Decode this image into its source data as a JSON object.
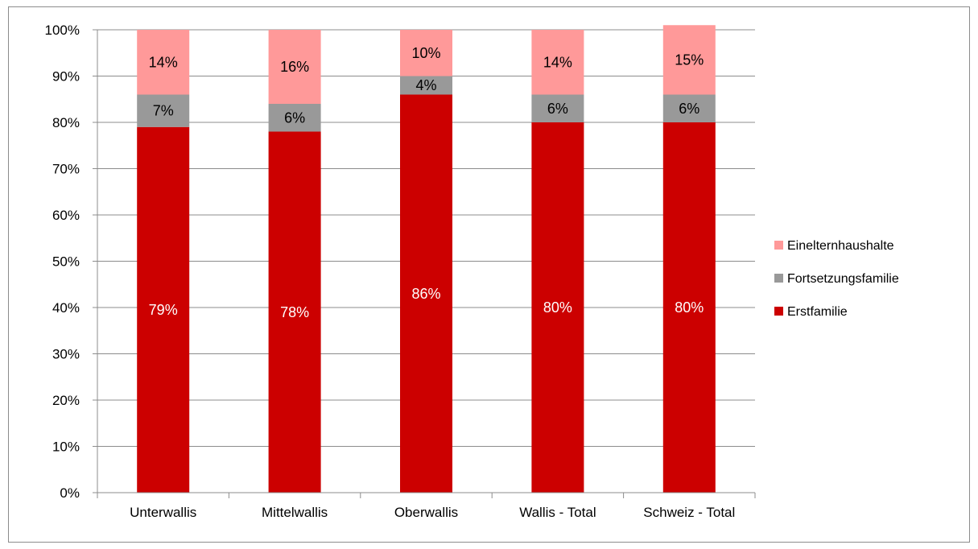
{
  "chart_data": {
    "type": "bar",
    "stacked": true,
    "percent_stacked": true,
    "title": "",
    "xlabel": "",
    "ylabel": "",
    "ylim": [
      0,
      100
    ],
    "y_ticks": [
      "0%",
      "10%",
      "20%",
      "30%",
      "40%",
      "50%",
      "60%",
      "70%",
      "80%",
      "90%",
      "100%"
    ],
    "grid": true,
    "legend_position": "right",
    "categories": [
      "Unterwallis",
      "Mittelwallis",
      "Oberwallis",
      "Wallis - Total",
      "Schweiz - Total"
    ],
    "series": [
      {
        "name": "Erstfamilie",
        "color": "#cc0000",
        "label_color": "#ffffff",
        "values": [
          79,
          78,
          86,
          80,
          80
        ],
        "labels": [
          "79%",
          "78%",
          "86%",
          "80%",
          "80%"
        ]
      },
      {
        "name": "Fortsetzungsfamilie",
        "color": "#999999",
        "label_color": "#000000",
        "values": [
          7,
          6,
          4,
          6,
          6
        ],
        "labels": [
          "7%",
          "6%",
          "4%",
          "6%",
          "6%"
        ]
      },
      {
        "name": "Einelternhaushalte",
        "color": "#ff9999",
        "label_color": "#000000",
        "values": [
          14,
          16,
          10,
          14,
          15
        ],
        "labels": [
          "14%",
          "16%",
          "10%",
          "14%",
          "15%"
        ]
      }
    ],
    "legend_order": [
      "Einelternhaushalte",
      "Fortsetzungsfamilie",
      "Erstfamilie"
    ]
  }
}
